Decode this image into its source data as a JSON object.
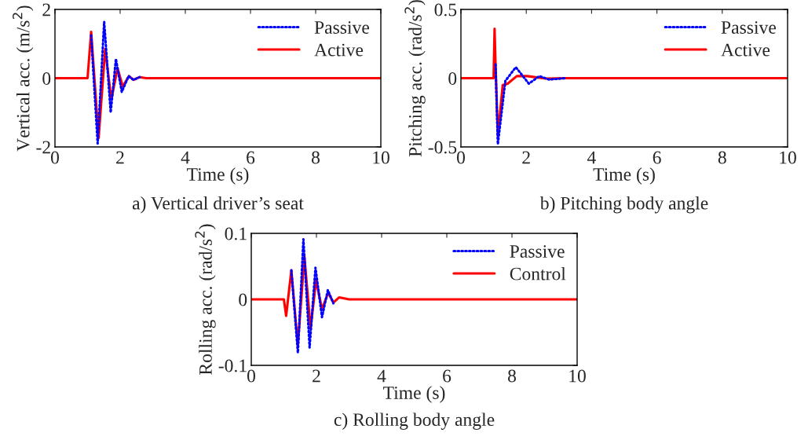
{
  "chart_data": [
    {
      "type": "line",
      "xlabel": "Time (s)",
      "ylabel": "Vertical acc. (m/s$^{2}$)",
      "annotations": [
        "a) Vertical driver’s seat"
      ],
      "xlim": [
        0,
        10
      ],
      "ylim": [
        -2,
        2
      ],
      "xticks": [
        0,
        2,
        4,
        6,
        8,
        10
      ],
      "yticks": [
        -2,
        0,
        2
      ],
      "grid": false,
      "legend": "top right",
      "series": [
        {
          "name": "Passive",
          "color": "#0000ff",
          "line_style": "dotted",
          "x": [
            1.11,
            1.31,
            1.51,
            1.71,
            1.87,
            2.05,
            2.26,
            2.41,
            2.6
          ],
          "values": [
            1.25,
            -1.9,
            1.64,
            -1.0,
            0.56,
            -0.4,
            0.06,
            -0.05,
            0.03
          ]
        },
        {
          "name": "Active",
          "color": "#ff0000",
          "line_style": "solid",
          "x": [
            0,
            1.0,
            1.11,
            1.34,
            1.54,
            1.73,
            1.92,
            2.08,
            2.27,
            2.41,
            2.6,
            2.8,
            10
          ],
          "values": [
            0,
            0,
            1.35,
            -1.74,
            0.85,
            -0.62,
            0.29,
            -0.24,
            0.06,
            -0.05,
            0.03,
            0,
            0
          ]
        }
      ]
    },
    {
      "type": "line",
      "xlabel": "Time (s)",
      "ylabel": "Pitching acc. (rad/s$^{2}$)",
      "annotations": [
        "b) Pitching body angle"
      ],
      "xlim": [
        0,
        10
      ],
      "ylim": [
        -0.5,
        0.5
      ],
      "xticks": [
        0,
        2,
        4,
        6,
        8,
        10
      ],
      "yticks": [
        -0.5,
        0,
        0.5
      ],
      "grid": false,
      "legend": "top right",
      "series": [
        {
          "name": "Passive",
          "color": "#0000ff",
          "line_style": "dotted",
          "x": [
            1.06,
            1.13,
            1.36,
            1.68,
            2.08,
            2.4,
            2.7,
            3.2
          ],
          "values": [
            0.1,
            -0.48,
            -0.02,
            0.08,
            -0.04,
            0.015,
            -0.01,
            0
          ]
        },
        {
          "name": "Active",
          "color": "#ff0000",
          "line_style": "solid",
          "x": [
            0,
            1.0,
            1.03,
            1.06,
            1.13,
            1.28,
            1.43,
            1.71,
            2.03,
            2.6,
            3.2,
            10
          ],
          "values": [
            0,
            0,
            0.36,
            0.1,
            -0.42,
            -0.05,
            -0.04,
            0.015,
            0.015,
            -0.003,
            0,
            0
          ]
        }
      ]
    },
    {
      "type": "line",
      "xlabel": "Time (s)",
      "ylabel": "Rolling acc. (rad/s$^{2}$)",
      "annotations": [
        "c) Rolling body angle"
      ],
      "xlim": [
        0,
        10
      ],
      "ylim": [
        -0.1,
        0.1
      ],
      "xticks": [
        0,
        2,
        4,
        6,
        8,
        10
      ],
      "yticks": [
        -0.1,
        0,
        0.1
      ],
      "grid": false,
      "legend": "top right",
      "series": [
        {
          "name": "Passive",
          "color": "#0000ff",
          "line_style": "dotted",
          "x": [
            1.23,
            1.43,
            1.6,
            1.79,
            1.97,
            2.17,
            2.35,
            2.52
          ],
          "values": [
            0.044,
            -0.081,
            0.091,
            -0.073,
            0.048,
            -0.027,
            0.014,
            -0.006
          ]
        },
        {
          "name": "Control",
          "color": "#ff0000",
          "line_style": "solid",
          "x": [
            0,
            1.0,
            1.07,
            1.23,
            1.43,
            1.63,
            1.82,
            1.99,
            2.17,
            2.36,
            2.52,
            2.7,
            3.0,
            10
          ],
          "values": [
            0,
            0,
            -0.025,
            0.044,
            -0.07,
            0.065,
            -0.044,
            0.029,
            -0.015,
            0.01,
            -0.005,
            0.003,
            0,
            0
          ]
        }
      ]
    }
  ]
}
